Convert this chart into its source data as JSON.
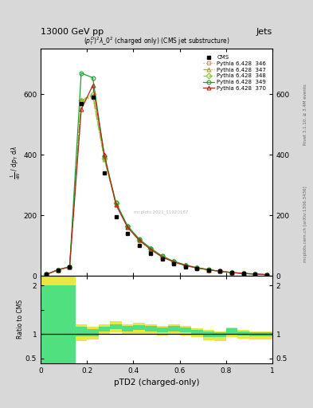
{
  "title_top": "13000 GeV pp",
  "title_right": "Jets",
  "plot_title": "$(p_T^D)^2\\lambda\\_0^2$ (charged only) (CMS jet substructure)",
  "xlabel": "pTD2 (charged-only)",
  "ylabel_ratio": "Ratio to CMS",
  "right_label1": "Rivet 3.1.10, ≥ 3.4M events",
  "right_label2": "mcplots.cern.ch [arXiv:1306.3436]",
  "watermark": "mcplots 2021_11920187",
  "cms_x": [
    0.025,
    0.075,
    0.125,
    0.175,
    0.225,
    0.275,
    0.325,
    0.375,
    0.425,
    0.475,
    0.525,
    0.575,
    0.625,
    0.675,
    0.725,
    0.775,
    0.825,
    0.875,
    0.925,
    0.975
  ],
  "cms_y": [
    5,
    20,
    30,
    570,
    590,
    340,
    195,
    140,
    100,
    75,
    55,
    40,
    30,
    25,
    20,
    15,
    10,
    8,
    6,
    4
  ],
  "p346_x": [
    0.025,
    0.075,
    0.125,
    0.175,
    0.225,
    0.275,
    0.325,
    0.375,
    0.425,
    0.475,
    0.525,
    0.575,
    0.625,
    0.675,
    0.725,
    0.775,
    0.825,
    0.875,
    0.925,
    0.975
  ],
  "p346_y": [
    5,
    20,
    30,
    580,
    590,
    390,
    240,
    165,
    120,
    90,
    65,
    47,
    36,
    27,
    20,
    15,
    11,
    8,
    6,
    4
  ],
  "p347_x": [
    0.025,
    0.075,
    0.125,
    0.175,
    0.225,
    0.275,
    0.325,
    0.375,
    0.425,
    0.475,
    0.525,
    0.575,
    0.625,
    0.675,
    0.725,
    0.775,
    0.825,
    0.875,
    0.925,
    0.975
  ],
  "p347_y": [
    5,
    20,
    30,
    580,
    595,
    385,
    238,
    162,
    118,
    88,
    63,
    46,
    35,
    26,
    20,
    15,
    11,
    8,
    6,
    4
  ],
  "p348_x": [
    0.025,
    0.075,
    0.125,
    0.175,
    0.225,
    0.275,
    0.325,
    0.375,
    0.425,
    0.475,
    0.525,
    0.575,
    0.625,
    0.675,
    0.725,
    0.775,
    0.825,
    0.875,
    0.925,
    0.975
  ],
  "p348_y": [
    5,
    20,
    30,
    580,
    600,
    387,
    240,
    163,
    120,
    89,
    63,
    47,
    35,
    27,
    20,
    15,
    11,
    8,
    6,
    4
  ],
  "p349_x": [
    0.025,
    0.075,
    0.125,
    0.175,
    0.225,
    0.275,
    0.325,
    0.375,
    0.425,
    0.475,
    0.525,
    0.575,
    0.625,
    0.675,
    0.725,
    0.775,
    0.825,
    0.875,
    0.925,
    0.975
  ],
  "p349_y": [
    5,
    20,
    30,
    670,
    655,
    395,
    242,
    165,
    122,
    91,
    65,
    48,
    36,
    27,
    21,
    15,
    11,
    8,
    6,
    4
  ],
  "p370_x": [
    0.025,
    0.075,
    0.125,
    0.175,
    0.225,
    0.275,
    0.325,
    0.375,
    0.425,
    0.475,
    0.525,
    0.575,
    0.625,
    0.675,
    0.725,
    0.775,
    0.825,
    0.875,
    0.925,
    0.975
  ],
  "p370_y": [
    5,
    20,
    30,
    550,
    630,
    400,
    235,
    160,
    118,
    87,
    62,
    46,
    34,
    26,
    20,
    15,
    11,
    8,
    6,
    4
  ],
  "green_band_upper": [
    2.0,
    2.0,
    2.0,
    1.15,
    1.1,
    1.15,
    1.2,
    1.16,
    1.18,
    1.16,
    1.14,
    1.16,
    1.13,
    1.09,
    1.05,
    1.04,
    1.11,
    1.06,
    1.04,
    1.04
  ],
  "green_band_lower": [
    0.4,
    0.4,
    0.4,
    0.95,
    0.95,
    1.05,
    1.1,
    1.06,
    1.08,
    1.06,
    1.04,
    1.06,
    1.04,
    1.0,
    0.94,
    0.93,
    1.0,
    0.97,
    0.96,
    0.96
  ],
  "yellow_band_upper": [
    2.2,
    2.2,
    2.2,
    1.2,
    1.15,
    1.2,
    1.26,
    1.2,
    1.23,
    1.2,
    1.17,
    1.2,
    1.16,
    1.11,
    1.08,
    1.06,
    1.13,
    1.09,
    1.06,
    1.06
  ],
  "yellow_band_lower": [
    0.1,
    0.1,
    0.1,
    0.85,
    0.88,
    0.98,
    1.03,
    0.99,
    1.01,
    0.99,
    0.97,
    0.99,
    0.97,
    0.93,
    0.87,
    0.86,
    0.93,
    0.91,
    0.89,
    0.89
  ],
  "color_346": "#c8a060",
  "color_347": "#a8a820",
  "color_348": "#88c830",
  "color_349": "#20a030",
  "color_370": "#b02820",
  "xlim": [
    0,
    1
  ],
  "ylim_main": [
    0,
    750
  ],
  "ylim_ratio": [
    0.4,
    2.2
  ],
  "yticks_main": [
    0,
    200,
    400,
    600
  ],
  "ytick_labels_main": [
    "0",
    "200",
    "400",
    "600"
  ],
  "bg_color": "#d8d8d8",
  "inner_bg": "#ffffff"
}
